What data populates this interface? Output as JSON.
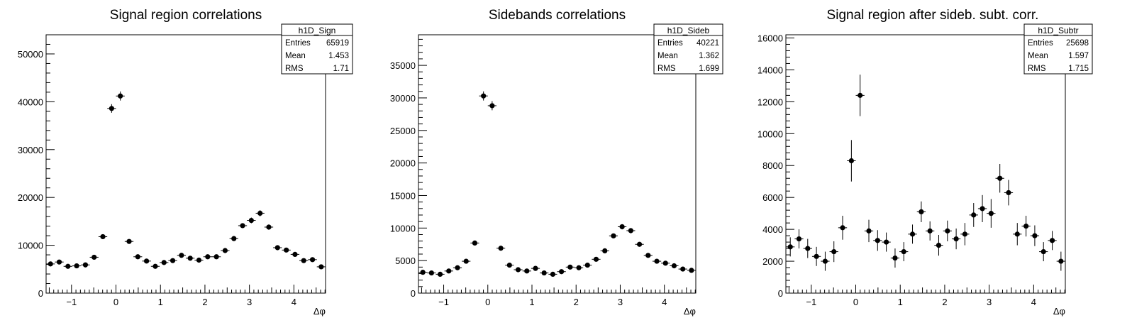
{
  "chart_data": [
    {
      "type": "scatter",
      "title": "Signal region correlations",
      "xlabel": "Δφ",
      "ylabel": "",
      "xlim": [
        -1.571,
        4.712
      ],
      "ylim": [
        0,
        54000
      ],
      "yticks": [
        0,
        10000,
        20000,
        30000,
        40000,
        50000
      ],
      "ytick_labels": [
        "0",
        "10000",
        "20000",
        "30000",
        "40000",
        "50000"
      ],
      "xticks": [
        -1,
        0,
        1,
        2,
        3,
        4
      ],
      "xtick_labels": [
        "−1",
        "0",
        "1",
        "2",
        "3",
        "4"
      ],
      "stats": {
        "name": "h1D_Sign",
        "rows": [
          {
            "label": "Entries",
            "value": "65919"
          },
          {
            "label": "Mean",
            "value": "1.453"
          },
          {
            "label": "RMS",
            "value": "1.71"
          }
        ]
      },
      "x": [
        -1.472,
        -1.276,
        -1.08,
        -0.884,
        -0.687,
        -0.491,
        -0.295,
        -0.098,
        0.098,
        0.295,
        0.491,
        0.687,
        0.884,
        1.08,
        1.276,
        1.473,
        1.669,
        1.865,
        2.062,
        2.258,
        2.454,
        2.651,
        2.847,
        3.043,
        3.24,
        3.436,
        3.632,
        3.829,
        4.025,
        4.221,
        4.418,
        4.614
      ],
      "values": [
        6100,
        6500,
        5600,
        5700,
        5900,
        7500,
        11800,
        38600,
        41200,
        10800,
        7600,
        6700,
        5600,
        6400,
        6800,
        7900,
        7300,
        6900,
        7600,
        7600,
        8900,
        11400,
        14100,
        15200,
        16700,
        13800,
        9500,
        9000,
        8100,
        6800,
        7000,
        5500
      ],
      "errors": [
        300,
        300,
        300,
        300,
        300,
        350,
        400,
        900,
        950,
        400,
        350,
        300,
        300,
        300,
        300,
        350,
        300,
        300,
        300,
        300,
        350,
        400,
        500,
        600,
        650,
        550,
        400,
        350,
        350,
        300,
        300,
        300
      ]
    },
    {
      "type": "scatter",
      "title": "Sidebands correlations",
      "xlabel": "Δφ",
      "ylabel": "",
      "xlim": [
        -1.571,
        4.712
      ],
      "ylim": [
        0,
        39700
      ],
      "yticks": [
        0,
        5000,
        10000,
        15000,
        20000,
        25000,
        30000,
        35000
      ],
      "ytick_labels": [
        "0",
        "5000",
        "10000",
        "15000",
        "20000",
        "25000",
        "30000",
        "35000"
      ],
      "xticks": [
        -1,
        0,
        1,
        2,
        3,
        4
      ],
      "xtick_labels": [
        "−1",
        "0",
        "1",
        "2",
        "3",
        "4"
      ],
      "stats": {
        "name": "h1D_Sideb",
        "rows": [
          {
            "label": "Entries",
            "value": "40221"
          },
          {
            "label": "Mean",
            "value": "1.362"
          },
          {
            "label": "RMS",
            "value": "1.699"
          }
        ]
      },
      "x": [
        -1.472,
        -1.276,
        -1.08,
        -0.884,
        -0.687,
        -0.491,
        -0.295,
        -0.098,
        0.098,
        0.295,
        0.491,
        0.687,
        0.884,
        1.08,
        1.276,
        1.473,
        1.669,
        1.865,
        2.062,
        2.258,
        2.454,
        2.651,
        2.847,
        3.043,
        3.24,
        3.436,
        3.632,
        3.829,
        4.025,
        4.221,
        4.418,
        4.614
      ],
      "values": [
        3200,
        3100,
        2900,
        3400,
        3900,
        4900,
        7700,
        30300,
        28800,
        6900,
        4300,
        3600,
        3400,
        3800,
        3100,
        2900,
        3300,
        4000,
        3900,
        4300,
        5200,
        6500,
        8800,
        10200,
        9600,
        7500,
        5800,
        4900,
        4600,
        4200,
        3700,
        3500
      ],
      "errors": [
        200,
        200,
        200,
        200,
        200,
        250,
        300,
        700,
        700,
        300,
        250,
        200,
        200,
        200,
        200,
        200,
        200,
        200,
        200,
        200,
        250,
        300,
        350,
        400,
        400,
        350,
        250,
        250,
        250,
        200,
        200,
        200
      ]
    },
    {
      "type": "scatter",
      "title": "Signal region after sideb. subt. corr.",
      "xlabel": "Δφ",
      "ylabel": "",
      "xlim": [
        -1.571,
        4.712
      ],
      "ylim": [
        0,
        16200
      ],
      "yticks": [
        0,
        2000,
        4000,
        6000,
        8000,
        10000,
        12000,
        14000,
        16000
      ],
      "ytick_labels": [
        "0",
        "2000",
        "4000",
        "6000",
        "8000",
        "10000",
        "12000",
        "14000",
        "16000"
      ],
      "xticks": [
        -1,
        0,
        1,
        2,
        3,
        4
      ],
      "xtick_labels": [
        "−1",
        "0",
        "1",
        "2",
        "3",
        "4"
      ],
      "stats": {
        "name": "h1D_Subtr",
        "rows": [
          {
            "label": "Entries",
            "value": "25698"
          },
          {
            "label": "Mean",
            "value": "1.597"
          },
          {
            "label": "RMS",
            "value": "1.715"
          }
        ]
      },
      "x": [
        -1.472,
        -1.276,
        -1.08,
        -0.884,
        -0.687,
        -0.491,
        -0.295,
        -0.098,
        0.098,
        0.295,
        0.491,
        0.687,
        0.884,
        1.08,
        1.276,
        1.473,
        1.669,
        1.865,
        2.062,
        2.258,
        2.454,
        2.651,
        2.847,
        3.043,
        3.24,
        3.436,
        3.632,
        3.829,
        4.025,
        4.221,
        4.418,
        4.614
      ],
      "values": [
        2900,
        3400,
        2800,
        2300,
        2000,
        2600,
        4100,
        8300,
        12400,
        3900,
        3300,
        3200,
        2200,
        2600,
        3700,
        5100,
        3900,
        3000,
        3900,
        3400,
        3700,
        4900,
        5300,
        5000,
        7200,
        6300,
        3700,
        4200,
        3600,
        2600,
        3300,
        2000
      ]
    }
  ],
  "errors3": [
    600,
    600,
    600,
    600,
    600,
    650,
    750,
    1300,
    1300,
    700,
    650,
    600,
    600,
    600,
    600,
    650,
    600,
    650,
    650,
    650,
    700,
    750,
    850,
    900,
    900,
    800,
    700,
    650,
    650,
    600,
    600,
    600
  ]
}
